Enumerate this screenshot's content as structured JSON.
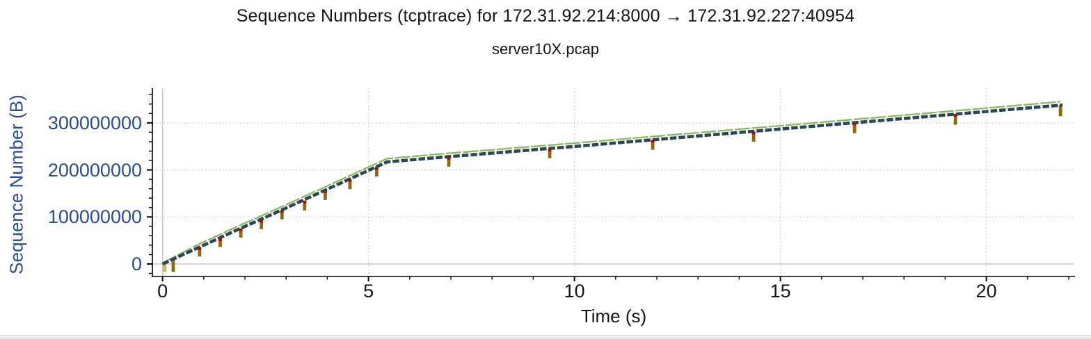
{
  "window": {
    "bottom_strip": true
  },
  "chart_data": {
    "type": "line",
    "title": "Sequence Numbers (tcptrace) for 172.31.92.214:8000 → 172.31.92.227:40954",
    "subtitle": "server10X.pcap",
    "xlabel": "Time (s)",
    "ylabel": "Sequence Number (B)",
    "xlim": [
      -0.26,
      22.15
    ],
    "ylim": [
      -26000000,
      373000000
    ],
    "grid": "dotted at majors, solid light line at zero axes",
    "legend": "none",
    "x_major_ticks": [
      0,
      5,
      10,
      15,
      20
    ],
    "x_tick_labels": [
      "0",
      "5",
      "10",
      "15",
      "20"
    ],
    "x_minor_step": 1,
    "x_minor_range": [
      0,
      22
    ],
    "y_major_ticks": [
      0,
      100000000,
      200000000,
      300000000
    ],
    "y_tick_labels": [
      "0",
      "100000000",
      "200000000",
      "300000000"
    ],
    "y_minor_step": 20000000,
    "y_minor_range": [
      -20000000,
      360000000
    ],
    "colors": {
      "segments": "#2e4557",
      "receive_window": "#8cba5e",
      "sack": "#8b6a14",
      "sack_first": "#c6b472",
      "retransmission": "#c00000",
      "grid": "#c9c9c9",
      "zero_line": "#c6c6c6",
      "axis": "#000000",
      "y_tick_label": "#2b4c8c",
      "x_tick_label": "#141414"
    },
    "series": [
      {
        "name": "tcp-segments",
        "style": "thick dashed line",
        "points": [
          [
            0,
            0
          ],
          [
            0.9,
            36000000
          ],
          [
            1.9,
            76000000
          ],
          [
            2.9,
            115000000
          ],
          [
            3.95,
            157000000
          ],
          [
            4.5,
            179000000
          ],
          [
            5.45,
            217000000
          ],
          [
            6.5,
            225000000
          ],
          [
            10,
            250000000
          ],
          [
            15,
            287000000
          ],
          [
            21.85,
            338000000
          ]
        ]
      },
      {
        "name": "receive-window",
        "style": "thin green line above segments",
        "points": [
          [
            0,
            2000000
          ],
          [
            0.9,
            43000000
          ],
          [
            1.9,
            83000000
          ],
          [
            2.9,
            122000000
          ],
          [
            3.95,
            164000000
          ],
          [
            4.5,
            186000000
          ],
          [
            5.45,
            224000000
          ],
          [
            6.5,
            232000000
          ],
          [
            10,
            257000000
          ],
          [
            15,
            294000000
          ],
          [
            21.8,
            345000000
          ]
        ]
      },
      {
        "name": "sack-blocks",
        "style": "brown vertical bars hanging below segment line",
        "bars": [
          {
            "t": 0.05,
            "top": 2000000,
            "bottom": -17000000,
            "first": true
          },
          {
            "t": 0.26,
            "top": 8000000,
            "bottom": -17000000
          },
          {
            "t": 0.9,
            "top": 36000000,
            "bottom": 16000000
          },
          {
            "t": 1.4,
            "top": 55000000,
            "bottom": 36000000
          },
          {
            "t": 1.9,
            "top": 76000000,
            "bottom": 56000000
          },
          {
            "t": 2.4,
            "top": 94000000,
            "bottom": 74000000
          },
          {
            "t": 2.9,
            "top": 115000000,
            "bottom": 95000000
          },
          {
            "t": 3.45,
            "top": 135000000,
            "bottom": 114000000
          },
          {
            "t": 3.95,
            "top": 157000000,
            "bottom": 136000000
          },
          {
            "t": 4.55,
            "top": 181000000,
            "bottom": 159000000
          },
          {
            "t": 5.2,
            "top": 207000000,
            "bottom": 186000000
          },
          {
            "t": 6.95,
            "top": 228000000,
            "bottom": 207000000
          },
          {
            "t": 9.4,
            "top": 246000000,
            "bottom": 225000000
          },
          {
            "t": 11.9,
            "top": 264000000,
            "bottom": 243000000
          },
          {
            "t": 14.35,
            "top": 282000000,
            "bottom": 260000000
          },
          {
            "t": 16.8,
            "top": 301000000,
            "bottom": 278000000
          },
          {
            "t": 19.25,
            "top": 319000000,
            "bottom": 296000000
          },
          {
            "t": 21.8,
            "top": 338000000,
            "bottom": 314000000
          }
        ]
      },
      {
        "name": "retransmissions",
        "style": "small red marks on line at sack bar tops",
        "dots": [
          {
            "t": 0.9,
            "seq": 36000000
          },
          {
            "t": 1.4,
            "seq": 55000000
          },
          {
            "t": 1.9,
            "seq": 76000000
          },
          {
            "t": 2.4,
            "seq": 94000000
          },
          {
            "t": 2.9,
            "seq": 115000000
          },
          {
            "t": 3.45,
            "seq": 135000000
          },
          {
            "t": 3.95,
            "seq": 157000000
          },
          {
            "t": 4.55,
            "seq": 181000000
          },
          {
            "t": 5.2,
            "seq": 207000000
          },
          {
            "t": 6.95,
            "seq": 228000000
          },
          {
            "t": 9.4,
            "seq": 246000000
          },
          {
            "t": 11.9,
            "seq": 264000000
          },
          {
            "t": 14.35,
            "seq": 282000000
          },
          {
            "t": 16.8,
            "seq": 301000000
          },
          {
            "t": 19.25,
            "seq": 319000000
          }
        ]
      }
    ]
  }
}
